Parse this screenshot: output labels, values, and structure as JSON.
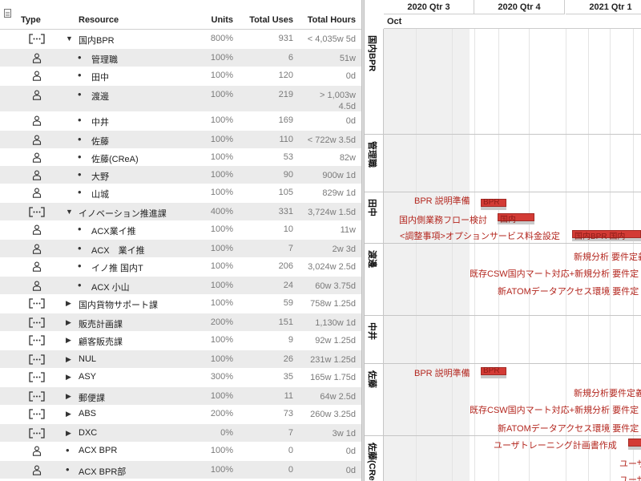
{
  "outline": {
    "columns": {
      "type": "Type",
      "resource": "Resource",
      "units": "Units",
      "total_uses": "Total Uses",
      "total_hours": "Total Hours"
    },
    "rows": [
      {
        "kind": "group",
        "expander": "expanded",
        "level": 0,
        "name": "国内BPR",
        "units": "800%",
        "uses": "931",
        "hours": "< 4,035w 5d"
      },
      {
        "kind": "person",
        "level": 1,
        "name": "管理職",
        "units": "100%",
        "uses": "6",
        "hours": "51w"
      },
      {
        "kind": "person",
        "level": 1,
        "name": "田中",
        "units": "100%",
        "uses": "120",
        "hours": "0d"
      },
      {
        "kind": "person",
        "level": 1,
        "name": "渡邊",
        "units": "100%",
        "uses": "219",
        "hours": "> 1,003w",
        "hours2": "4.5d"
      },
      {
        "kind": "person",
        "level": 1,
        "name": "中井",
        "units": "100%",
        "uses": "169",
        "hours": "0d"
      },
      {
        "kind": "person",
        "level": 1,
        "name": "佐藤",
        "units": "100%",
        "uses": "110",
        "hours": "< 722w 3.5d"
      },
      {
        "kind": "person",
        "level": 1,
        "name": "佐藤(CReA)",
        "units": "100%",
        "uses": "53",
        "hours": "82w"
      },
      {
        "kind": "person",
        "level": 1,
        "name": "大野",
        "units": "100%",
        "uses": "90",
        "hours": "900w 1d"
      },
      {
        "kind": "person",
        "level": 1,
        "name": "山城",
        "units": "100%",
        "uses": "105",
        "hours": "829w 1d"
      },
      {
        "kind": "group",
        "expander": "expanded",
        "level": 0,
        "name": "イノベーション推進課",
        "units": "400%",
        "uses": "331",
        "hours": "3,724w 1.5d"
      },
      {
        "kind": "person",
        "level": 1,
        "name": "ACX業イ推",
        "units": "100%",
        "uses": "10",
        "hours": "11w"
      },
      {
        "kind": "person",
        "level": 1,
        "name": "ACX　業イ推",
        "units": "100%",
        "uses": "7",
        "hours": "2w 3d"
      },
      {
        "kind": "person",
        "level": 1,
        "name": "イノ推 国内T",
        "units": "100%",
        "uses": "206",
        "hours": "3,024w 2.5d"
      },
      {
        "kind": "person",
        "level": 1,
        "name": "ACX 小山",
        "units": "100%",
        "uses": "24",
        "hours": "60w 3.75d"
      },
      {
        "kind": "group",
        "expander": "collapsed",
        "level": 0,
        "name": "国内貨物サポート課",
        "units": "100%",
        "uses": "59",
        "hours": "758w 1.25d"
      },
      {
        "kind": "group",
        "expander": "collapsed",
        "level": 0,
        "name": "販売計画課",
        "units": "200%",
        "uses": "151",
        "hours": "1,130w 1d"
      },
      {
        "kind": "group",
        "expander": "collapsed",
        "level": 0,
        "name": "顧客販売課",
        "units": "100%",
        "uses": "9",
        "hours": "92w 1.25d"
      },
      {
        "kind": "group",
        "expander": "collapsed",
        "level": 0,
        "name": "NUL",
        "units": "100%",
        "uses": "26",
        "hours": "231w 1.25d"
      },
      {
        "kind": "group",
        "expander": "collapsed",
        "level": 0,
        "name": "ASY",
        "units": "300%",
        "uses": "35",
        "hours": "165w 1.75d"
      },
      {
        "kind": "group",
        "expander": "collapsed",
        "level": 0,
        "name": "郵便課",
        "units": "100%",
        "uses": "11",
        "hours": "64w 2.5d"
      },
      {
        "kind": "group",
        "expander": "collapsed",
        "level": 0,
        "name": "ABS",
        "units": "200%",
        "uses": "73",
        "hours": "260w 3.25d"
      },
      {
        "kind": "group",
        "expander": "collapsed",
        "level": 0,
        "name": "DXC",
        "units": "0%",
        "uses": "7",
        "hours": "3w 1d"
      },
      {
        "kind": "person",
        "level": 0,
        "name": "ACX BPR",
        "units": "100%",
        "uses": "0",
        "hours": "0d"
      },
      {
        "kind": "person",
        "level": 0,
        "name": "ACX BPR部",
        "units": "100%",
        "uses": "0",
        "hours": "0d"
      }
    ]
  },
  "timeline": {
    "quarters": [
      "2020 Qtr 3",
      "2020 Qtr 4",
      "2021 Qtr 1"
    ],
    "month": "Oct",
    "lanes": [
      {
        "label": "国内BPR"
      },
      {
        "label": "管理職"
      },
      {
        "label": "田中"
      },
      {
        "label": "渡邊"
      },
      {
        "label": "中井"
      },
      {
        "label": "佐藤"
      },
      {
        "label": "佐藤(CReA)"
      }
    ],
    "tasks": [
      {
        "label": "BPR 説明準備",
        "bar_text": "BPR"
      },
      {
        "label": "国内側業務フロー検討",
        "bar_text": "国内"
      },
      {
        "label": "<調整事項>オプションサービス料金設定",
        "bar_text": "国内BPR 国内"
      },
      {
        "label": "新規分析 要件定義"
      },
      {
        "label": "既存CSW国内マート対応+新規分析 要件定"
      },
      {
        "label": "新ATOMデータアクセス環境 要件定"
      },
      {
        "label": "BPR 説明準備",
        "bar_text": "BPR"
      },
      {
        "label": "新規分析要件定義"
      },
      {
        "label": "既存CSW国内マート対応+新規分析 要件定"
      },
      {
        "label": "新ATOMデータアクセス環境 要件定"
      },
      {
        "label": "ユーザトレーニング計画書作成"
      },
      {
        "label": "ユーザ"
      },
      {
        "label": "ユーザ"
      }
    ]
  }
}
